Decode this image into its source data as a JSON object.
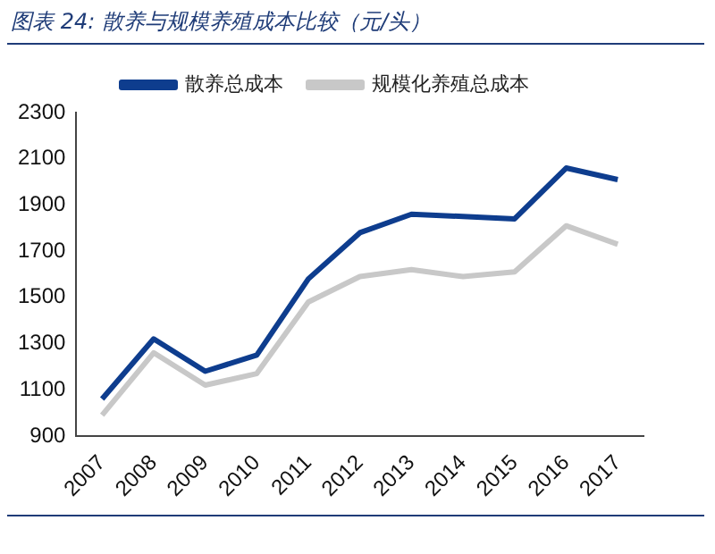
{
  "chart_data": {
    "type": "line",
    "title": "图表 24:  散养与规模养殖成本比较（元/头）",
    "categories": [
      "2007",
      "2008",
      "2009",
      "2010",
      "2011",
      "2012",
      "2013",
      "2014",
      "2015",
      "2016",
      "2017"
    ],
    "series": [
      {
        "name": "散养总成本",
        "color": "#0e3d8e",
        "values": [
          1060,
          1320,
          1180,
          1250,
          1580,
          1780,
          1860,
          1850,
          1840,
          2060,
          2010
        ]
      },
      {
        "name": "规模化养殖总成本",
        "color": "#c8c8c8",
        "values": [
          990,
          1260,
          1120,
          1170,
          1480,
          1590,
          1620,
          1590,
          1610,
          1810,
          1730
        ]
      }
    ],
    "ylim": [
      900,
      2300
    ],
    "yticks": [
      900,
      1100,
      1300,
      1500,
      1700,
      1900,
      2100,
      2300
    ],
    "grid": false,
    "legend": "top",
    "marker": "none",
    "line_style": "solid"
  }
}
